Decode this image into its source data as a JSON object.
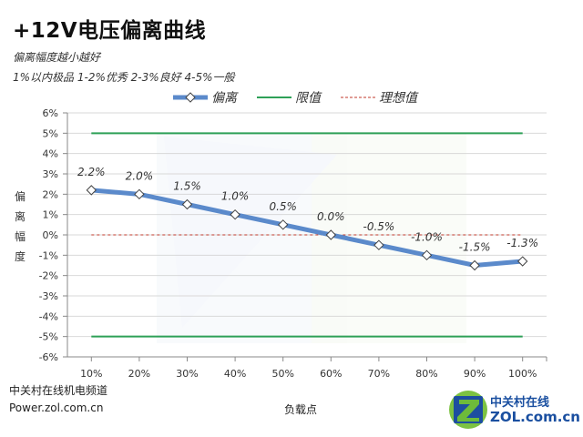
{
  "header": {
    "title": "+12V电压偏离曲线",
    "subtitle1": "偏离幅度越小越好",
    "subtitle2": "1%以内极品 1-2%优秀  2-3%良好 4-5%一般"
  },
  "legend": {
    "deviation": "偏离",
    "limit": "限值",
    "ideal": "理想值"
  },
  "colors": {
    "deviation": "#5B8ACB",
    "limit": "#2EA057",
    "ideal": "#C0392B",
    "grid": "#D9D9D9",
    "axis": "#888888"
  },
  "axis": {
    "ylabel_chars": [
      "偏",
      "离",
      "幅",
      "度"
    ],
    "xlabel": "负载点"
  },
  "footer": {
    "source_name": "中关村在线机电频道",
    "source_url": "Power.zol.com.cn",
    "logo_text1": "中关村在线",
    "logo_text2": "ZOL.com.cn"
  },
  "chart_data": {
    "type": "line",
    "title": "+12V电压偏离曲线",
    "xlabel": "负载点",
    "ylabel": "偏离幅度",
    "categories": [
      "10%",
      "20%",
      "30%",
      "40%",
      "50%",
      "60%",
      "70%",
      "80%",
      "90%",
      "100%"
    ],
    "series": [
      {
        "name": "偏离",
        "values": [
          2.2,
          2.0,
          1.5,
          1.0,
          0.5,
          0.0,
          -0.5,
          -1.0,
          -1.5,
          -1.3
        ],
        "labels": [
          "2.2%",
          "2.0%",
          "1.5%",
          "1.0%",
          "0.5%",
          "0.0%",
          "-0.5%",
          "-1.0%",
          "-1.5%",
          "-1.3%"
        ]
      },
      {
        "name": "限值",
        "values": [
          5,
          5,
          5,
          5,
          5,
          5,
          5,
          5,
          5,
          5
        ]
      },
      {
        "name": "限值",
        "values": [
          -5,
          -5,
          -5,
          -5,
          -5,
          -5,
          -5,
          -5,
          -5,
          -5
        ]
      },
      {
        "name": "理想值",
        "values": [
          0,
          0,
          0,
          0,
          0,
          0,
          0,
          0,
          0,
          0
        ]
      }
    ],
    "yticks": [
      "6%",
      "5%",
      "4%",
      "3%",
      "2%",
      "1%",
      "0%",
      "-1%",
      "-2%",
      "-3%",
      "-4%",
      "-5%",
      "-6%"
    ],
    "ylim": [
      -6,
      6
    ],
    "grid": true,
    "legend_position": "top"
  }
}
